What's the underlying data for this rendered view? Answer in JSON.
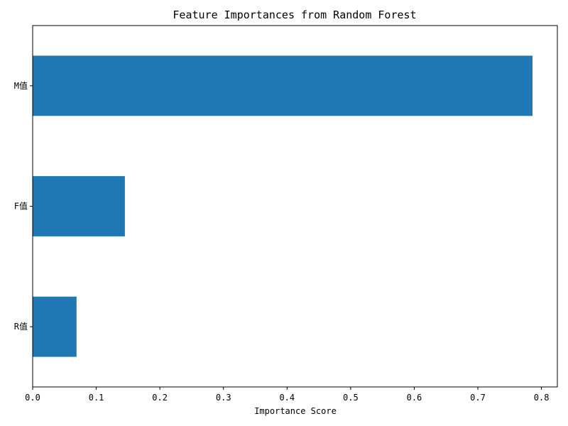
{
  "chart_data": {
    "type": "bar",
    "orientation": "horizontal",
    "title": "Feature Importances from Random Forest",
    "xlabel": "Importance Score",
    "ylabel": "",
    "categories": [
      "R值",
      "F值",
      "M值"
    ],
    "values": [
      0.069,
      0.145,
      0.786
    ],
    "xlim": [
      0.0,
      0.825
    ],
    "xticks": [
      0.0,
      0.1,
      0.2,
      0.3,
      0.4,
      0.5,
      0.6,
      0.7,
      0.8
    ],
    "xtick_labels": [
      "0.0",
      "0.1",
      "0.2",
      "0.3",
      "0.4",
      "0.5",
      "0.6",
      "0.7",
      "0.8"
    ],
    "grid": false,
    "bar_color": "#1f77b4"
  }
}
